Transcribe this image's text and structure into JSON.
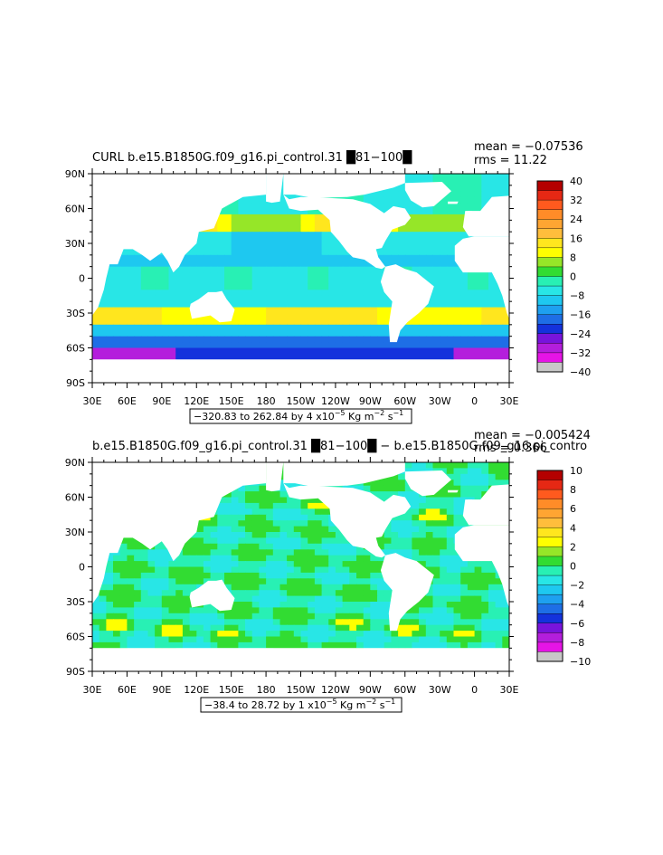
{
  "chart_data": [
    {
      "type": "heatmap",
      "title": "CURL b.e15.B1850G.f09_g16.pi_control.31 █81−100█",
      "stats": {
        "mean": "mean = −0.07536",
        "rms": "rms = 11.22"
      },
      "range_text": "−320.83 to 262.84 by 4 x10",
      "range_exp": "−5",
      "range_units": [
        " Kg m",
        "−2",
        " s",
        "−1"
      ],
      "lat_ticks": [
        "90N",
        "60N",
        "30N",
        "0",
        "30S",
        "60S",
        "90S"
      ],
      "lon_ticks": [
        "30E",
        "60E",
        "90E",
        "120E",
        "150E",
        "180",
        "150W",
        "120W",
        "90W",
        "60W",
        "30W",
        "0",
        "30E"
      ],
      "colorbar_labels": [
        "40",
        "32",
        "24",
        "16",
        "8",
        "0",
        "−8",
        "−16",
        "−24",
        "−32",
        "−40"
      ],
      "colorbar_levels": [
        40,
        36,
        32,
        28,
        24,
        20,
        16,
        12,
        8,
        4,
        0,
        -4,
        -8,
        -12,
        -16,
        -20,
        -24,
        -28,
        -32,
        -36,
        -40
      ]
    },
    {
      "type": "heatmap",
      "title": "b.e15.B1850G.f09_g16.pi_control.31 █81−100█ − b.e15.B1850G.f09_g16.pi_contro",
      "stats": {
        "mean": "mean = −0.005424",
        "rms": "rms = 0.366"
      },
      "range_text": "−38.4 to 28.72 by 1 x10",
      "range_exp": "−5",
      "range_units": [
        " Kg m",
        "−2",
        " s",
        "−1"
      ],
      "lat_ticks": [
        "90N",
        "60N",
        "30N",
        "0",
        "30S",
        "60S",
        "90S"
      ],
      "lon_ticks": [
        "30E",
        "60E",
        "90E",
        "120E",
        "150E",
        "180",
        "150W",
        "120W",
        "90W",
        "60W",
        "30W",
        "0",
        "30E"
      ],
      "colorbar_labels": [
        "10",
        "8",
        "6",
        "4",
        "2",
        "0",
        "−2",
        "−4",
        "−6",
        "−8",
        "−10"
      ],
      "colorbar_levels": [
        10,
        9,
        8,
        7,
        6,
        5,
        4,
        3,
        2,
        1,
        0,
        -1,
        -2,
        -3,
        -4,
        -5,
        -6,
        -7,
        -8,
        -9,
        -10
      ]
    }
  ],
  "colors": {
    "palette": [
      "#b40000",
      "#e62814",
      "#ff5a1e",
      "#ff8c28",
      "#ffa532",
      "#ffbe3c",
      "#ffe61e",
      "#ffff00",
      "#96e628",
      "#32dc32",
      "#28f0b4",
      "#28e6e6",
      "#1ec8f0",
      "#1ea0f0",
      "#1e6ee6",
      "#1432dc",
      "#7814dc",
      "#b41edc",
      "#e614e6",
      "#c8c8c8",
      "#6e6e6e"
    ],
    "land": "#ffffff"
  }
}
